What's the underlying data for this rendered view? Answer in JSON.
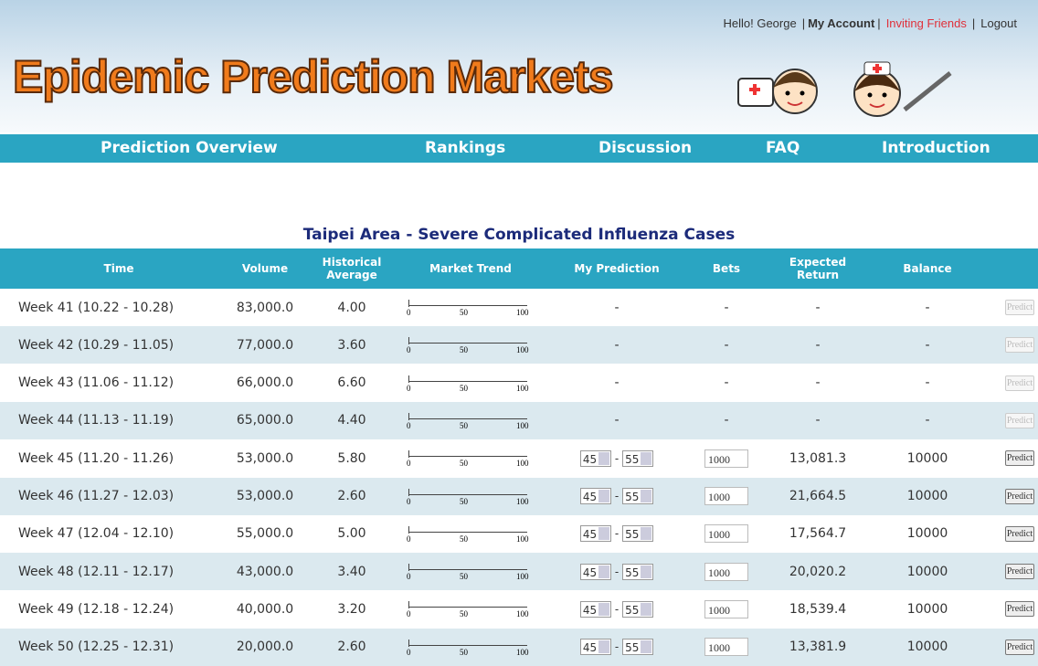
{
  "header": {
    "greeting": "Hello! George",
    "separator": "|",
    "links": [
      "My Account",
      "Inviting Friends",
      "Logout"
    ],
    "logo": "Epidemic Prediction Markets"
  },
  "nav": [
    "Prediction Overview",
    "Rankings",
    "Discussion",
    "FAQ",
    "Introduction"
  ],
  "table": {
    "title": "Taipei Area - Severe Complicated Influenza Cases",
    "columns": [
      "Time",
      "Volume",
      "Historical Average",
      "Market Trend",
      "My Prediction",
      "Bets",
      "Expected Return",
      "Balance"
    ],
    "trend_scale": [
      "0",
      "50",
      "100"
    ],
    "range_separator": "-",
    "button_label": "Predict",
    "rows": [
      {
        "time": "Week 41 (10.22 - 10.28)",
        "volume": "83,000.0",
        "historical_average": "4.00",
        "my_prediction": "-",
        "bets": "-",
        "expected_return": "-",
        "balance": "-",
        "predict_enabled": false
      },
      {
        "time": "Week 42 (10.29 - 11.05)",
        "volume": "77,000.0",
        "historical_average": "3.60",
        "my_prediction": "-",
        "bets": "-",
        "expected_return": "-",
        "balance": "-",
        "predict_enabled": false
      },
      {
        "time": "Week 43 (11.06 - 11.12)",
        "volume": "66,000.0",
        "historical_average": "6.60",
        "my_prediction": "-",
        "bets": "-",
        "expected_return": "-",
        "balance": "-",
        "predict_enabled": false
      },
      {
        "time": "Week 44 (11.13 - 11.19)",
        "volume": "65,000.0",
        "historical_average": "4.40",
        "my_prediction": "-",
        "bets": "-",
        "expected_return": "-",
        "balance": "-",
        "predict_enabled": false
      },
      {
        "time": "Week 45 (11.20 - 11.26)",
        "volume": "53,000.0",
        "historical_average": "5.80",
        "my_prediction": {
          "low": "45",
          "high": "55"
        },
        "bets": "1000",
        "expected_return": "13,081.3",
        "balance": "10000",
        "predict_enabled": true
      },
      {
        "time": "Week 46 (11.27 - 12.03)",
        "volume": "53,000.0",
        "historical_average": "2.60",
        "my_prediction": {
          "low": "45",
          "high": "55"
        },
        "bets": "1000",
        "expected_return": "21,664.5",
        "balance": "10000",
        "predict_enabled": true
      },
      {
        "time": "Week 47 (12.04 - 12.10)",
        "volume": "55,000.0",
        "historical_average": "5.00",
        "my_prediction": {
          "low": "45",
          "high": "55"
        },
        "bets": "1000",
        "expected_return": "17,564.7",
        "balance": "10000",
        "predict_enabled": true
      },
      {
        "time": "Week 48 (12.11 - 12.17)",
        "volume": "43,000.0",
        "historical_average": "3.40",
        "my_prediction": {
          "low": "45",
          "high": "55"
        },
        "bets": "1000",
        "expected_return": "20,020.2",
        "balance": "10000",
        "predict_enabled": true
      },
      {
        "time": "Week 49 (12.18 - 12.24)",
        "volume": "40,000.0",
        "historical_average": "3.20",
        "my_prediction": {
          "low": "45",
          "high": "55"
        },
        "bets": "1000",
        "expected_return": "18,539.4",
        "balance": "10000",
        "predict_enabled": true
      },
      {
        "time": "Week 50 (12.25 - 12.31)",
        "volume": "20,000.0",
        "historical_average": "2.60",
        "my_prediction": {
          "low": "45",
          "high": "55"
        },
        "bets": "1000",
        "expected_return": "13,381.9",
        "balance": "10000",
        "predict_enabled": true
      }
    ]
  }
}
